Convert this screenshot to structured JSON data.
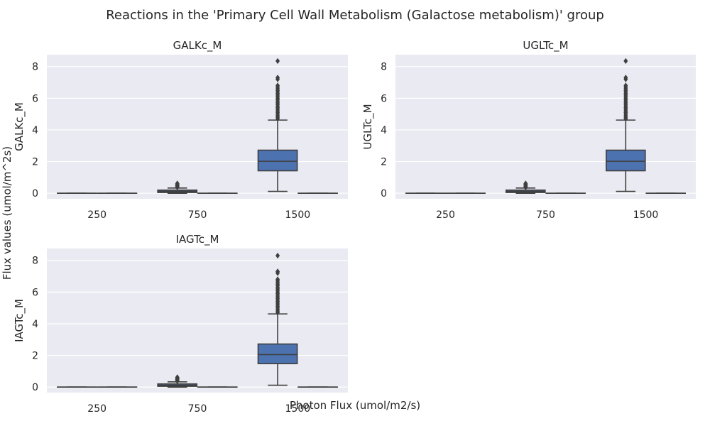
{
  "figure": {
    "suptitle": "Reactions in the 'Primary Cell Wall Metabolism (Galactose metabolism)' group",
    "supxlabel": "Photon Flux (umol/m2/s)",
    "supylabel": "Flux values (umol/m^2s)"
  },
  "colors": {
    "panel_bg": "#eaeaf2",
    "grid": "#ffffff",
    "box_fill": "#4c72b0",
    "line": "#3f3f3f",
    "text": "#262626"
  },
  "chart_data": [
    {
      "type": "box",
      "title": "GALKc_M",
      "xlabel": "",
      "ylabel": "GALKc_M",
      "ylim": [
        -0.35,
        8.75
      ],
      "yticks": [
        0,
        2,
        4,
        6,
        8
      ],
      "categories": [
        "250",
        "750",
        "1500"
      ],
      "grid": "horizontal",
      "boxes": [
        {
          "x": "250",
          "pos": "left",
          "q1": 0,
          "median": 0,
          "q3": 0,
          "whislo": 0,
          "whishi": 0,
          "fliers": []
        },
        {
          "x": "250",
          "pos": "right",
          "q1": 0,
          "median": 0,
          "q3": 0,
          "whislo": 0,
          "whishi": 0,
          "fliers": []
        },
        {
          "x": "750",
          "pos": "left",
          "q1": 0.05,
          "median": 0.12,
          "q3": 0.2,
          "whislo": 0,
          "whishi": 0.33,
          "fliers": [
            0.38,
            0.42,
            0.46,
            0.5,
            0.54,
            0.58,
            0.62
          ]
        },
        {
          "x": "750",
          "pos": "right",
          "q1": 0,
          "median": 0,
          "q3": 0,
          "whislo": 0,
          "whishi": 0,
          "fliers": []
        },
        {
          "x": "1500",
          "pos": "left",
          "q1": 1.42,
          "median": 2.02,
          "q3": 2.72,
          "whislo": 0.12,
          "whishi": 4.62,
          "fliers": [
            4.7,
            4.8,
            4.9,
            5.0,
            5.1,
            5.2,
            5.3,
            5.4,
            5.5,
            5.6,
            5.7,
            5.8,
            5.9,
            6.0,
            6.1,
            6.2,
            6.3,
            6.4,
            6.5,
            6.6,
            6.7,
            6.8,
            7.2,
            7.3,
            8.35
          ]
        },
        {
          "x": "1500",
          "pos": "right",
          "q1": 0,
          "median": 0,
          "q3": 0,
          "whislo": 0,
          "whishi": 0,
          "fliers": []
        }
      ]
    },
    {
      "type": "box",
      "title": "UGLTc_M",
      "xlabel": "",
      "ylabel": "UGLTc_M",
      "ylim": [
        -0.35,
        8.75
      ],
      "yticks": [
        0,
        2,
        4,
        6,
        8
      ],
      "categories": [
        "250",
        "750",
        "1500"
      ],
      "grid": "horizontal",
      "boxes": [
        {
          "x": "250",
          "pos": "left",
          "q1": 0,
          "median": 0,
          "q3": 0,
          "whislo": 0,
          "whishi": 0,
          "fliers": []
        },
        {
          "x": "250",
          "pos": "right",
          "q1": 0,
          "median": 0,
          "q3": 0,
          "whislo": 0,
          "whishi": 0,
          "fliers": []
        },
        {
          "x": "750",
          "pos": "left",
          "q1": 0.05,
          "median": 0.12,
          "q3": 0.2,
          "whislo": 0,
          "whishi": 0.33,
          "fliers": [
            0.38,
            0.42,
            0.46,
            0.5,
            0.54,
            0.58,
            0.62
          ]
        },
        {
          "x": "750",
          "pos": "right",
          "q1": 0,
          "median": 0,
          "q3": 0,
          "whislo": 0,
          "whishi": 0,
          "fliers": []
        },
        {
          "x": "1500",
          "pos": "left",
          "q1": 1.42,
          "median": 2.02,
          "q3": 2.72,
          "whislo": 0.12,
          "whishi": 4.62,
          "fliers": [
            4.7,
            4.8,
            4.9,
            5.0,
            5.1,
            5.2,
            5.3,
            5.4,
            5.5,
            5.6,
            5.7,
            5.8,
            5.9,
            6.0,
            6.1,
            6.2,
            6.3,
            6.4,
            6.5,
            6.6,
            6.7,
            6.8,
            7.2,
            7.3,
            8.35
          ]
        },
        {
          "x": "1500",
          "pos": "right",
          "q1": 0,
          "median": 0,
          "q3": 0,
          "whislo": 0,
          "whishi": 0,
          "fliers": []
        }
      ]
    },
    {
      "type": "box",
      "title": "IAGTc_M",
      "xlabel": "",
      "ylabel": "IAGTc_M",
      "ylim": [
        -0.35,
        8.75
      ],
      "yticks": [
        0,
        2,
        4,
        6,
        8
      ],
      "categories": [
        "250",
        "750",
        "1500"
      ],
      "grid": "horizontal",
      "boxes": [
        {
          "x": "250",
          "pos": "left",
          "q1": 0,
          "median": 0,
          "q3": 0,
          "whislo": 0,
          "whishi": 0,
          "fliers": []
        },
        {
          "x": "250",
          "pos": "right",
          "q1": 0,
          "median": 0,
          "q3": 0,
          "whislo": 0,
          "whishi": 0,
          "fliers": []
        },
        {
          "x": "750",
          "pos": "left",
          "q1": 0.05,
          "median": 0.12,
          "q3": 0.2,
          "whislo": 0,
          "whishi": 0.33,
          "fliers": [
            0.38,
            0.42,
            0.46,
            0.5,
            0.54,
            0.58,
            0.62
          ]
        },
        {
          "x": "750",
          "pos": "right",
          "q1": 0,
          "median": 0,
          "q3": 0,
          "whislo": 0,
          "whishi": 0,
          "fliers": []
        },
        {
          "x": "1500",
          "pos": "left",
          "q1": 1.48,
          "median": 2.05,
          "q3": 2.72,
          "whislo": 0.12,
          "whishi": 4.62,
          "fliers": [
            4.7,
            4.8,
            4.9,
            5.0,
            5.1,
            5.2,
            5.3,
            5.4,
            5.5,
            5.6,
            5.7,
            5.8,
            5.9,
            6.0,
            6.1,
            6.2,
            6.3,
            6.4,
            6.5,
            6.6,
            6.7,
            6.8,
            7.2,
            7.3,
            8.3
          ]
        },
        {
          "x": "1500",
          "pos": "right",
          "q1": 0,
          "median": 0,
          "q3": 0,
          "whislo": 0,
          "whishi": 0,
          "fliers": []
        }
      ]
    }
  ]
}
